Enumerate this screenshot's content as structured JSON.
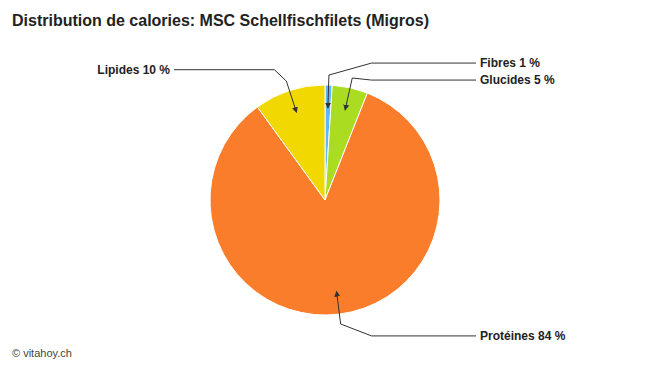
{
  "chart_data": {
    "type": "pie",
    "title": "Distribution de calories: MSC Schellfischfilets (Migros)",
    "categories": [
      "Fibres 1 %",
      "Glucides 5 %",
      "Protéines 84 %",
      "Lipides 10 %"
    ],
    "values": [
      1,
      5,
      84,
      10
    ],
    "colors": [
      "#5BB8FF",
      "#AADD22",
      "#F97D2A",
      "#F0D800"
    ],
    "annotations": [
      "© vitahoy.ch"
    ]
  }
}
